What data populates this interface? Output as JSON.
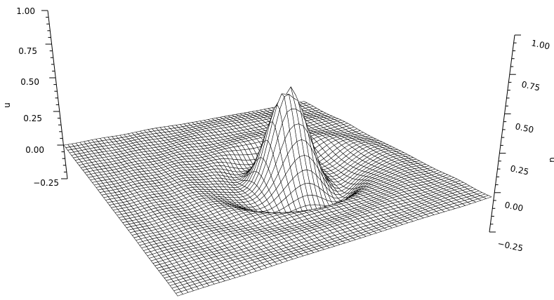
{
  "chart_data": {
    "type": "surface",
    "zlabel": "u",
    "zlim": [
      -0.25,
      1.0
    ],
    "z_ticks": [
      "1.00",
      "0.75",
      "0.50",
      "0.25",
      "0.00",
      "−0.25"
    ],
    "z_tick_values": [
      1.0,
      0.75,
      0.5,
      0.25,
      0.0,
      -0.25
    ],
    "grid": false,
    "surface_peak": 0.61,
    "surface_trough": -0.15,
    "line_color": "#000000",
    "face_color": "#ffffff"
  }
}
